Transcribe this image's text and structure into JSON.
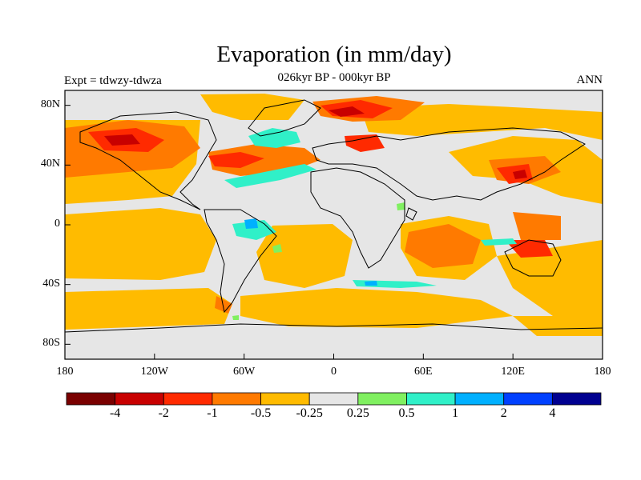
{
  "title": "Evaporation (in mm/day)",
  "subtitle": "026kyr BP - 000kyr BP",
  "left_label": "Expt = tdwzy-tdwza",
  "right_label": "ANN",
  "map": {
    "projection": "cylindrical equidistant",
    "lon_range": [
      -180,
      180
    ],
    "lat_range": [
      -90,
      90
    ],
    "land_background": "#e6e6e6",
    "coastline_color": "#000000"
  },
  "y_ticks": [
    {
      "lat": 80,
      "label": "80N"
    },
    {
      "lat": 40,
      "label": "40N"
    },
    {
      "lat": 0,
      "label": "0"
    },
    {
      "lat": -40,
      "label": "40S"
    },
    {
      "lat": -80,
      "label": "80S"
    }
  ],
  "x_ticks": [
    {
      "lon": -180,
      "label": "180"
    },
    {
      "lon": -120,
      "label": "120W"
    },
    {
      "lon": -60,
      "label": "60W"
    },
    {
      "lon": 0,
      "label": "0"
    },
    {
      "lon": 60,
      "label": "60E"
    },
    {
      "lon": 120,
      "label": "120E"
    },
    {
      "lon": 180,
      "label": "180"
    }
  ],
  "colorbar": {
    "colors": [
      "#7a0000",
      "#c80000",
      "#ff2a00",
      "#ff7a00",
      "#ffbb00",
      "#e6e6e6",
      "#80f060",
      "#30f0c8",
      "#00b0ff",
      "#0040ff",
      "#000090"
    ],
    "labels": [
      "-4",
      "-2",
      "-1",
      "-0.5",
      "-0.25",
      "0.25",
      "0.5",
      "1",
      "2",
      "4"
    ]
  }
}
